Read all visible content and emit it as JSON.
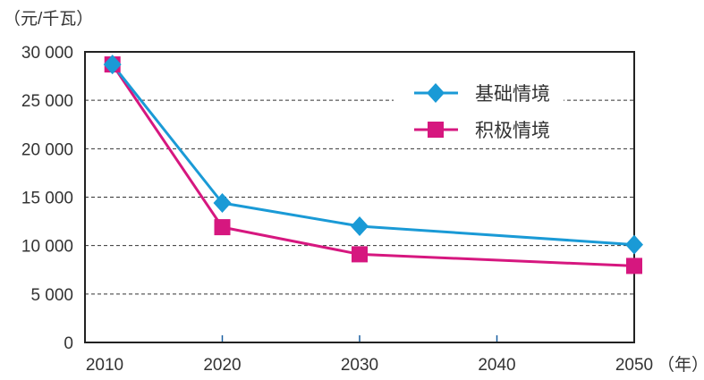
{
  "chart_data": {
    "type": "line",
    "title": "",
    "ylabel": "（元/千瓦）",
    "xlabel": "（年）",
    "ylim": [
      0,
      30000
    ],
    "xlim": [
      2010,
      2050
    ],
    "yticks": [
      0,
      5000,
      10000,
      15000,
      20000,
      25000,
      30000
    ],
    "ytick_labels": [
      "0",
      "5 000",
      "10 000",
      "15 000",
      "20 000",
      "25 000",
      "30 000"
    ],
    "xticks": [
      2010,
      2020,
      2030,
      2040,
      2050
    ],
    "xtick_labels": [
      "2010",
      "2020",
      "2030",
      "2040",
      "2050"
    ],
    "grid": "horizontal dashed",
    "legend_position": "top-right",
    "series": [
      {
        "name": "基础情境",
        "color": "#1a9ad6",
        "marker": "diamond",
        "x": [
          2012,
          2020,
          2030,
          2050
        ],
        "values": [
          28700,
          14400,
          12000,
          10100
        ]
      },
      {
        "name": "积极情境",
        "color": "#d6177f",
        "marker": "square",
        "x": [
          2012,
          2020,
          2030,
          2050
        ],
        "values": [
          28700,
          11900,
          9100,
          7900
        ]
      }
    ]
  }
}
